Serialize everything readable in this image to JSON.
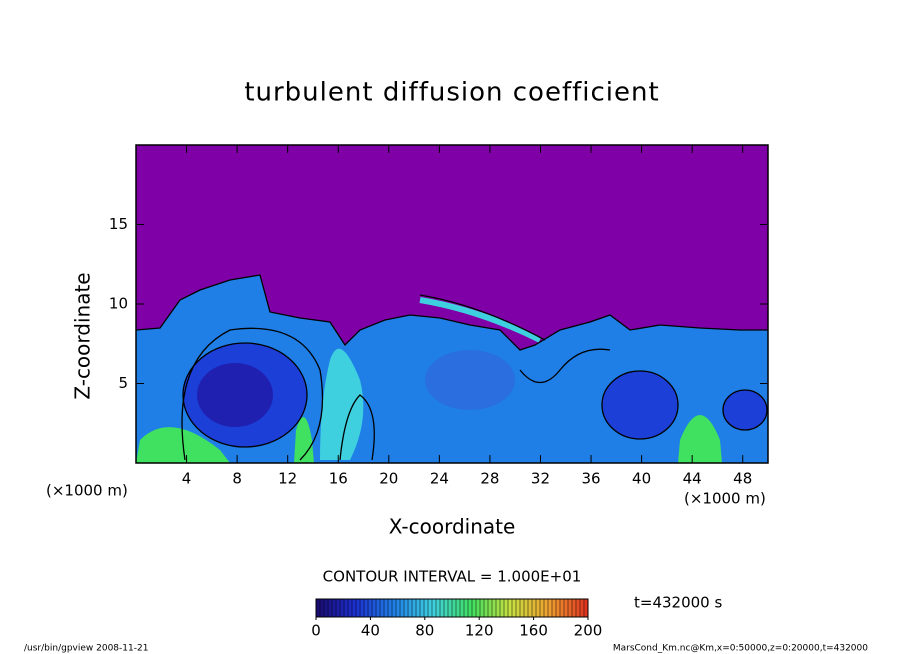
{
  "chart_data": {
    "type": "contour",
    "title": "turbulent diffusion coefficient",
    "xlabel": "X-coordinate",
    "ylabel": "Z-coordinate",
    "x_unit": "(×1000 m)",
    "xlim": [
      0,
      50
    ],
    "xticks": [
      4,
      8,
      12,
      16,
      20,
      24,
      28,
      32,
      36,
      40,
      44,
      48
    ],
    "ylim": [
      0,
      20
    ],
    "yticks": [
      5,
      10,
      15
    ],
    "contour_interval": "CONTOUR INTERVAL = 1.000E+01",
    "time_label": "t=432000 s",
    "colorbar": {
      "lim": [
        0,
        200
      ],
      "ticks": [
        0,
        40,
        80,
        120,
        160,
        200
      ],
      "colors": [
        "#1a0a6e",
        "#1c2fd0",
        "#1f7fe6",
        "#3fd0e0",
        "#40e060",
        "#c8e040",
        "#f0a030",
        "#e03020"
      ]
    },
    "footer_left": "/usr/bin/gpview  2008-11-21",
    "footer_right": "MarsCond_Km.nc@Km,x=0:50000,z=0:20000,t=432000"
  }
}
